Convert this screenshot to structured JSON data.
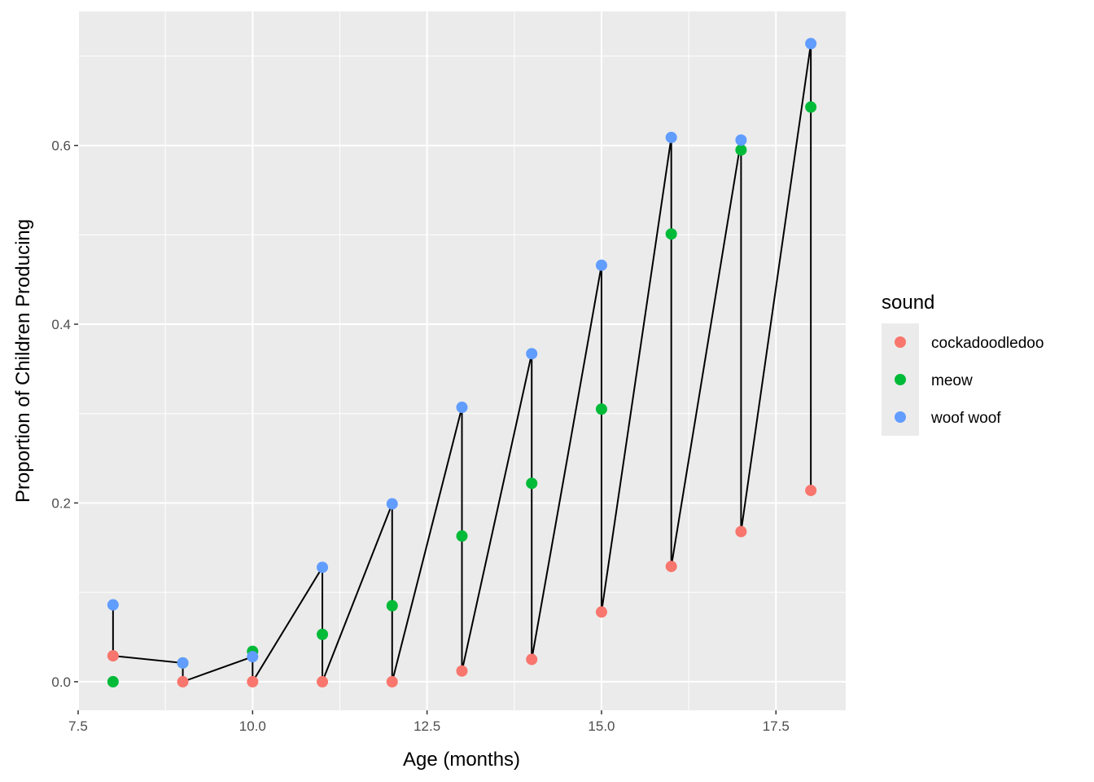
{
  "chart_data": {
    "type": "scatter",
    "title": "",
    "xlabel": "Age (months)",
    "ylabel": "Proportion of Children Producing",
    "xlim": [
      7.5,
      18.5
    ],
    "ylim": [
      -0.032,
      0.75
    ],
    "x_ticks": [
      7.5,
      10.0,
      12.5,
      15.0,
      17.5
    ],
    "x_tick_labels": [
      "7.5",
      "10.0",
      "12.5",
      "15.0",
      "17.5"
    ],
    "y_ticks": [
      0.0,
      0.2,
      0.4,
      0.6
    ],
    "y_tick_labels": [
      "0.0",
      "0.2",
      "0.4",
      "0.6"
    ],
    "grid": true,
    "legend": {
      "title": "sound",
      "position": "right"
    },
    "x": [
      8,
      9,
      10,
      11,
      12,
      13,
      14,
      15,
      16,
      17,
      18
    ],
    "series": [
      {
        "name": "cockadoodledoo",
        "color": "#F8766D",
        "values": [
          0.029,
          0.0,
          0.0,
          0.0,
          0.0,
          0.012,
          0.025,
          0.078,
          0.129,
          0.168,
          0.214
        ]
      },
      {
        "name": "meow",
        "color": "#00BA38",
        "values": [
          0.0,
          0.021,
          0.034,
          0.053,
          0.085,
          0.163,
          0.222,
          0.305,
          0.501,
          0.595,
          0.643
        ]
      },
      {
        "name": "woof woof",
        "color": "#619CFF",
        "values": [
          0.086,
          0.021,
          0.028,
          0.128,
          0.199,
          0.307,
          0.367,
          0.466,
          0.609,
          0.606,
          0.714
        ]
      }
    ],
    "connecting_line": {
      "color": "#000000",
      "order": "woof woof to cockadoodledoo within each age, then to next age's woof woof"
    }
  }
}
